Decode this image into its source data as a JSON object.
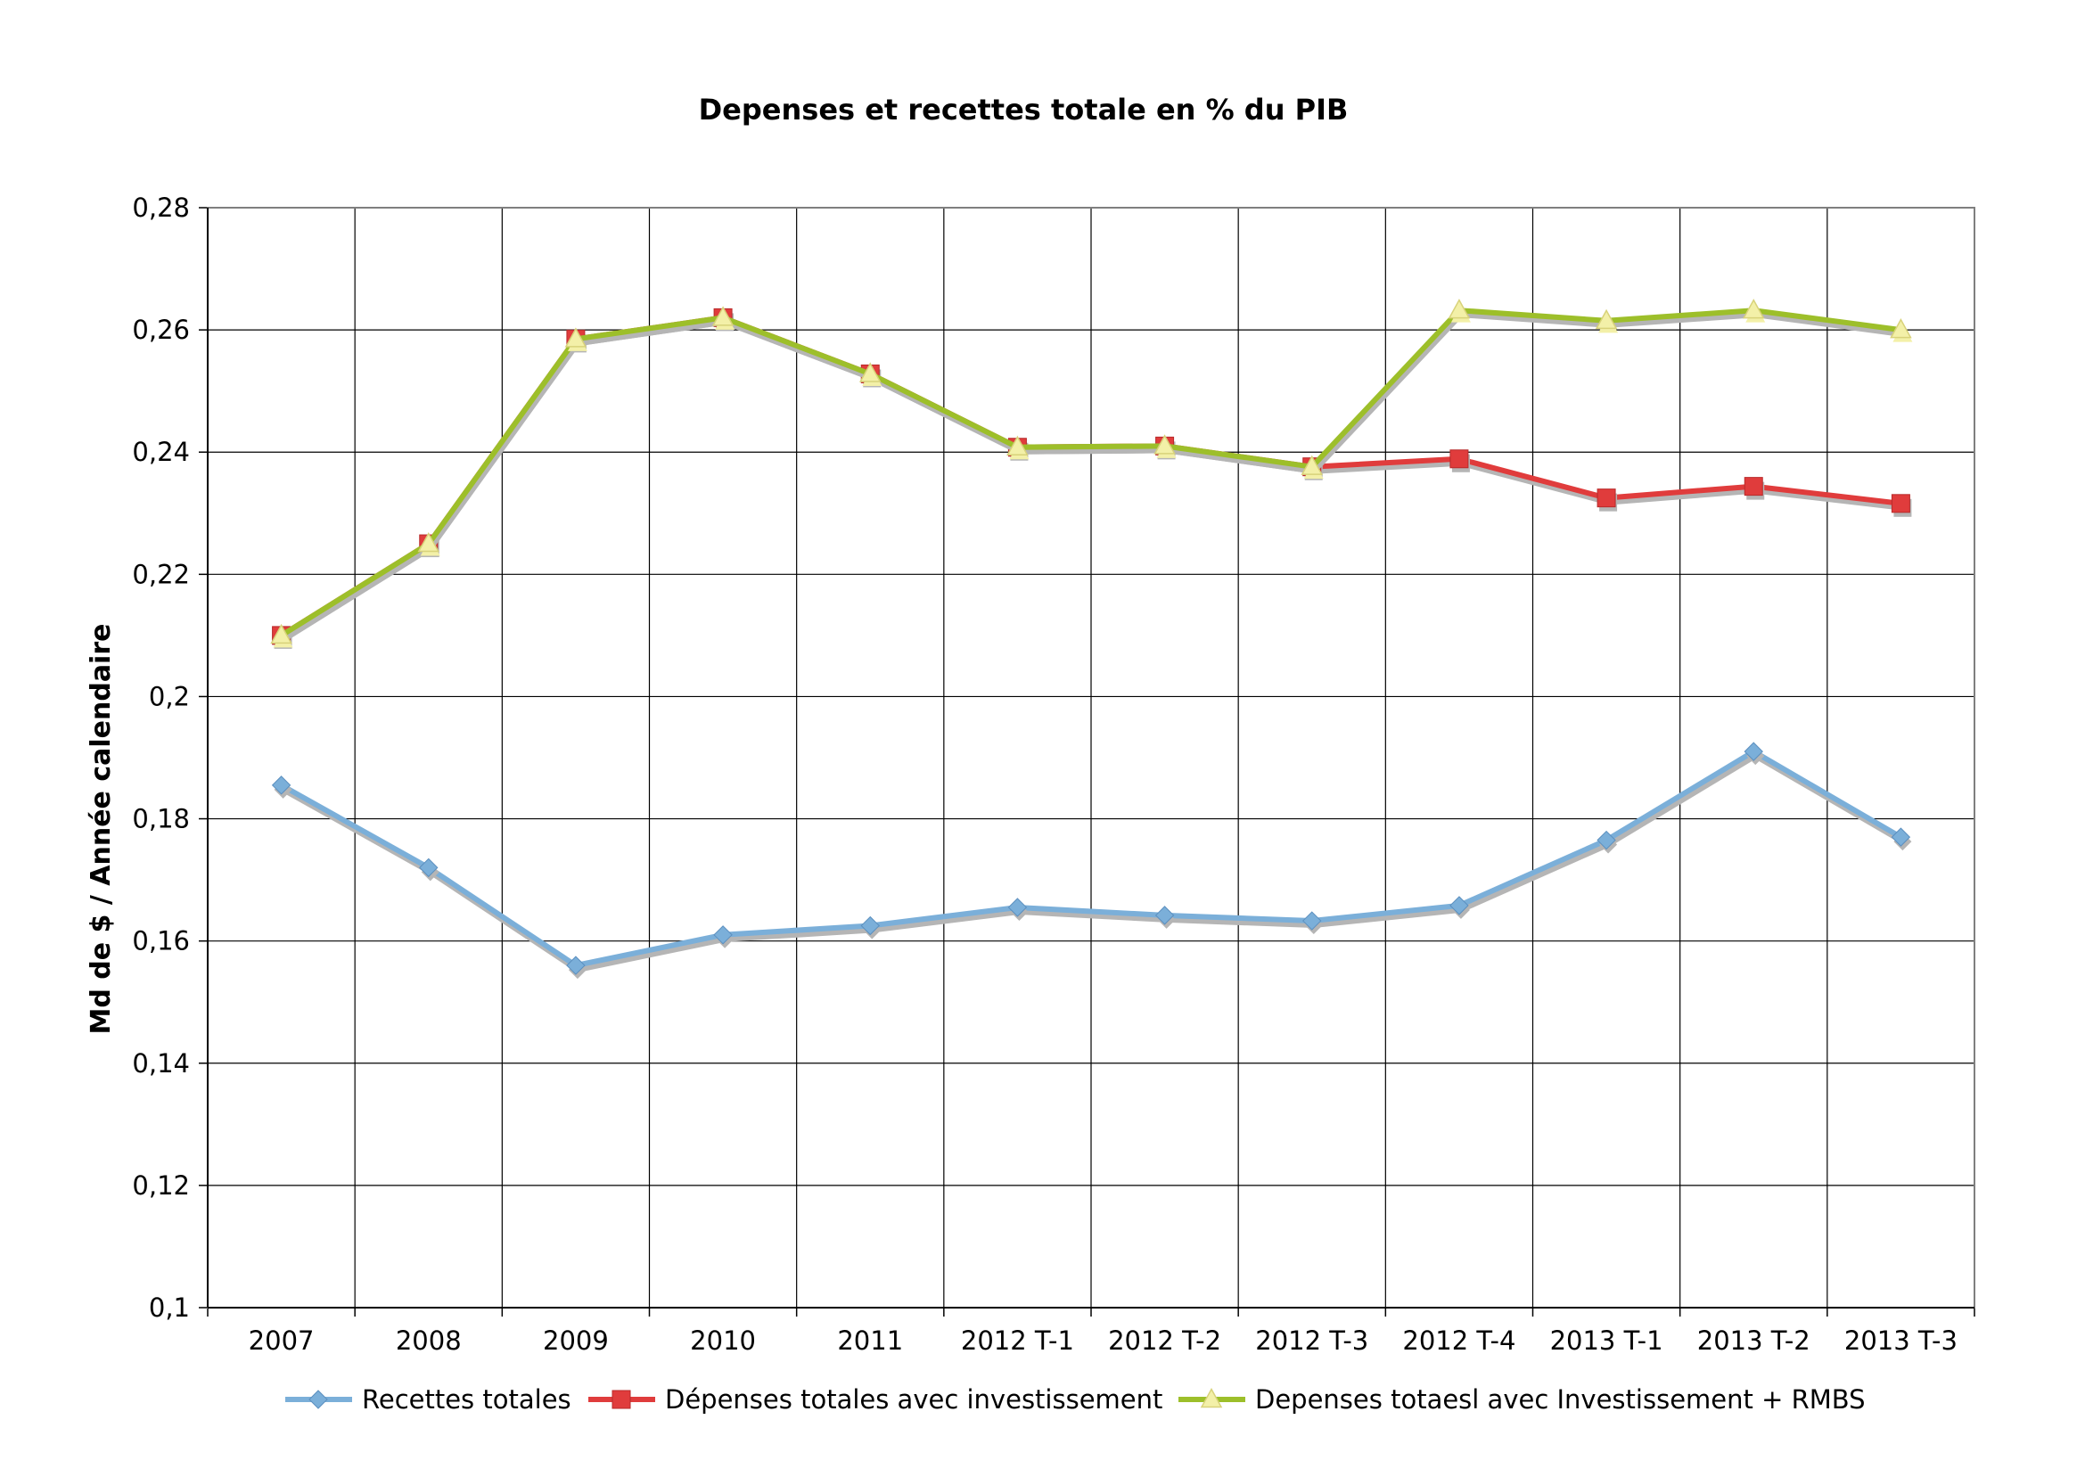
{
  "chart_data": {
    "type": "line",
    "title": "Depenses et recettes totale en % du PIB",
    "xlabel": "",
    "ylabel": "Md de $ / Année calendaire",
    "categories": [
      "2007",
      "2008",
      "2009",
      "2010",
      "2011",
      "2012 T-1",
      "2012 T-2",
      "2012 T-3",
      "2012 T-4",
      "2013 T-1",
      "2013 T-2",
      "2013 T-3"
    ],
    "ylim": [
      0.1,
      0.28
    ],
    "yticks": [
      0.1,
      0.12,
      0.14,
      0.16,
      0.18,
      0.2,
      0.22,
      0.24,
      0.26,
      0.28
    ],
    "ytick_labels": [
      "0,1",
      "0,12",
      "0,14",
      "0,16",
      "0,18",
      "0,2",
      "0,22",
      "0,24",
      "0,26",
      "0,28"
    ],
    "grid": true,
    "legend_position": "bottom",
    "series": [
      {
        "name": "Recettes totales",
        "color": "#7bafd9",
        "marker": "diamond",
        "values": [
          0.1855,
          0.172,
          0.156,
          0.161,
          0.1625,
          0.1655,
          0.1642,
          0.1633,
          0.1658,
          0.1765,
          0.191,
          0.177
        ]
      },
      {
        "name": "Dépenses totales avec investissement",
        "color": "#e03c3c",
        "marker": "square",
        "values": [
          0.21,
          0.225,
          0.2585,
          0.262,
          0.2528,
          0.2408,
          0.241,
          0.2376,
          0.2389,
          0.2325,
          0.2344,
          0.2316
        ]
      },
      {
        "name": "Depenses totaesl avec Investissement + RMBS",
        "color": "#9dbf2a",
        "marker": "triangle",
        "values": [
          0.21,
          0.225,
          0.2585,
          0.262,
          0.2528,
          0.2408,
          0.241,
          0.2376,
          0.2632,
          0.2615,
          0.2632,
          0.26
        ]
      }
    ]
  }
}
